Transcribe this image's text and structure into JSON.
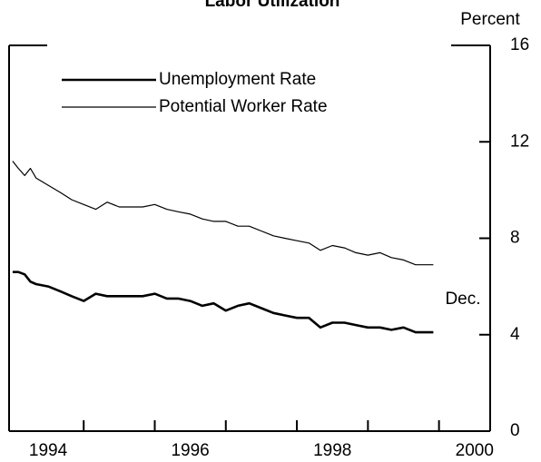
{
  "chart_data": {
    "type": "line",
    "title": "Labor Utilization",
    "y_axis_label": "Percent",
    "annotations": [
      "Dec."
    ],
    "xlim": [
      1993.95,
      2000.72
    ],
    "xtick_marks": [
      1995,
      1996,
      1997,
      1998,
      1999,
      2000
    ],
    "xticks": [
      {
        "value": 1994.5,
        "label": "1994"
      },
      {
        "value": 1996.5,
        "label": "1996"
      },
      {
        "value": 1998.5,
        "label": "1998"
      },
      {
        "value": 2000.5,
        "label": "2000"
      }
    ],
    "ylim": [
      0,
      16
    ],
    "yticks": [
      0,
      4,
      8,
      12,
      16
    ],
    "x": [
      1994.0,
      1994.08,
      1994.17,
      1994.25,
      1994.33,
      1994.5,
      1994.67,
      1994.83,
      1995.0,
      1995.17,
      1995.33,
      1995.5,
      1995.67,
      1995.83,
      1996.0,
      1996.17,
      1996.33,
      1996.5,
      1996.67,
      1996.83,
      1997.0,
      1997.17,
      1997.33,
      1997.5,
      1997.67,
      1997.83,
      1998.0,
      1998.17,
      1998.33,
      1998.5,
      1998.67,
      1998.83,
      1999.0,
      1999.17,
      1999.33,
      1999.5,
      1999.67,
      1999.92
    ],
    "series": [
      {
        "name": "Unemployment Rate",
        "color": "#000000",
        "width": 2.6,
        "values": [
          6.6,
          6.6,
          6.5,
          6.2,
          6.1,
          6.0,
          5.8,
          5.6,
          5.4,
          5.7,
          5.6,
          5.6,
          5.6,
          5.6,
          5.7,
          5.5,
          5.5,
          5.4,
          5.2,
          5.3,
          5.0,
          5.2,
          5.3,
          5.1,
          4.9,
          4.8,
          4.7,
          4.7,
          4.3,
          4.5,
          4.5,
          4.4,
          4.3,
          4.3,
          4.2,
          4.3,
          4.1,
          4.1
        ]
      },
      {
        "name": "Potential Worker Rate",
        "color": "#000000",
        "width": 1.2,
        "values": [
          11.2,
          10.9,
          10.6,
          10.9,
          10.5,
          10.2,
          9.9,
          9.6,
          9.4,
          9.2,
          9.5,
          9.3,
          9.3,
          9.3,
          9.4,
          9.2,
          9.1,
          9.0,
          8.8,
          8.7,
          8.7,
          8.5,
          8.5,
          8.3,
          8.1,
          8.0,
          7.9,
          7.8,
          7.5,
          7.7,
          7.6,
          7.4,
          7.3,
          7.4,
          7.2,
          7.1,
          6.9,
          6.9
        ]
      }
    ]
  }
}
